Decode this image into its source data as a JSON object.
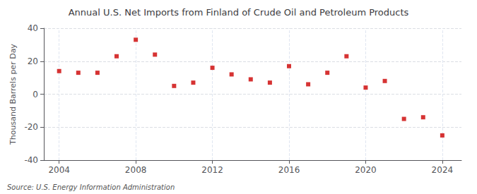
{
  "chart_data": {
    "type": "scatter",
    "title": "Annual U.S. Net Imports from Finland of Crude Oil and Petroleum Products",
    "ylabel": "Thousand Barrels per Day",
    "source": "Source: U.S. Energy Information Administration",
    "x": [
      2004,
      2005,
      2006,
      2007,
      2008,
      2009,
      2010,
      2011,
      2012,
      2013,
      2014,
      2015,
      2016,
      2017,
      2018,
      2019,
      2020,
      2021,
      2022,
      2023,
      2024
    ],
    "values": [
      14,
      13,
      13,
      23,
      33,
      24,
      5,
      7,
      16,
      12,
      9,
      7,
      17,
      6,
      13,
      23,
      4,
      8,
      -15,
      -14,
      -25
    ],
    "color": "#cc0000",
    "marker": "square",
    "xlim": [
      2003.2,
      2025.0
    ],
    "xticks": [
      2004,
      2008,
      2012,
      2016,
      2020,
      2024
    ],
    "ylim": [
      -40,
      40
    ],
    "yticks": [
      -40,
      -20,
      0,
      20,
      40
    ],
    "grid": true
  }
}
